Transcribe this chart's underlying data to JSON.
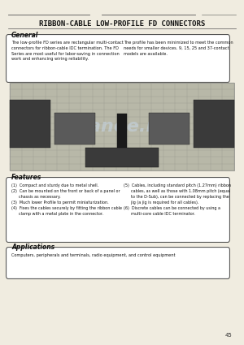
{
  "bg_color": "#f0ece0",
  "title": "RIBBON-CABLE LOW-PROFILE FD CONNECTORS",
  "section_general": "General",
  "general_text_left": "The low-profile FD series are rectangular multi-contact\nconnectors for ribbon-cable IDC termination. The FD\nSeries are most useful for labor-saving in connection\nwork and enhancing wiring reliability.",
  "general_text_right": "The profile has been minimized to meet the common\nneeds for smaller devices. 9, 15, 25 and 37-contact\nmodels are available.",
  "section_features": "Features",
  "features_left": "(1)  Compact and sturdy due to metal shell.\n(2)  Can be mounted on the front or back of a panel or\n      chassis as necessary.\n(3)  Much lower Profile to permit miniaturization.\n(4)  Fixes the cables securely by fitting the ribbon cable\n      clamp with a metal plate in the connector.",
  "features_right": "(5)  Cables, including standard pitch (1.27mm) ribbon\n      cables, as well as those with 1.08mm pitch (equal\n      to the D-Sub), can be connected by replacing the\n      jig (a jig is required for all cables).\n(6)  Discrete cables can be connected by using a\n      multi-core cable IDC terminator.",
  "section_applications": "Applications",
  "applications_text": "Computers, peripherals and terminals, radio equipment, and control equipment",
  "page_number": "45"
}
